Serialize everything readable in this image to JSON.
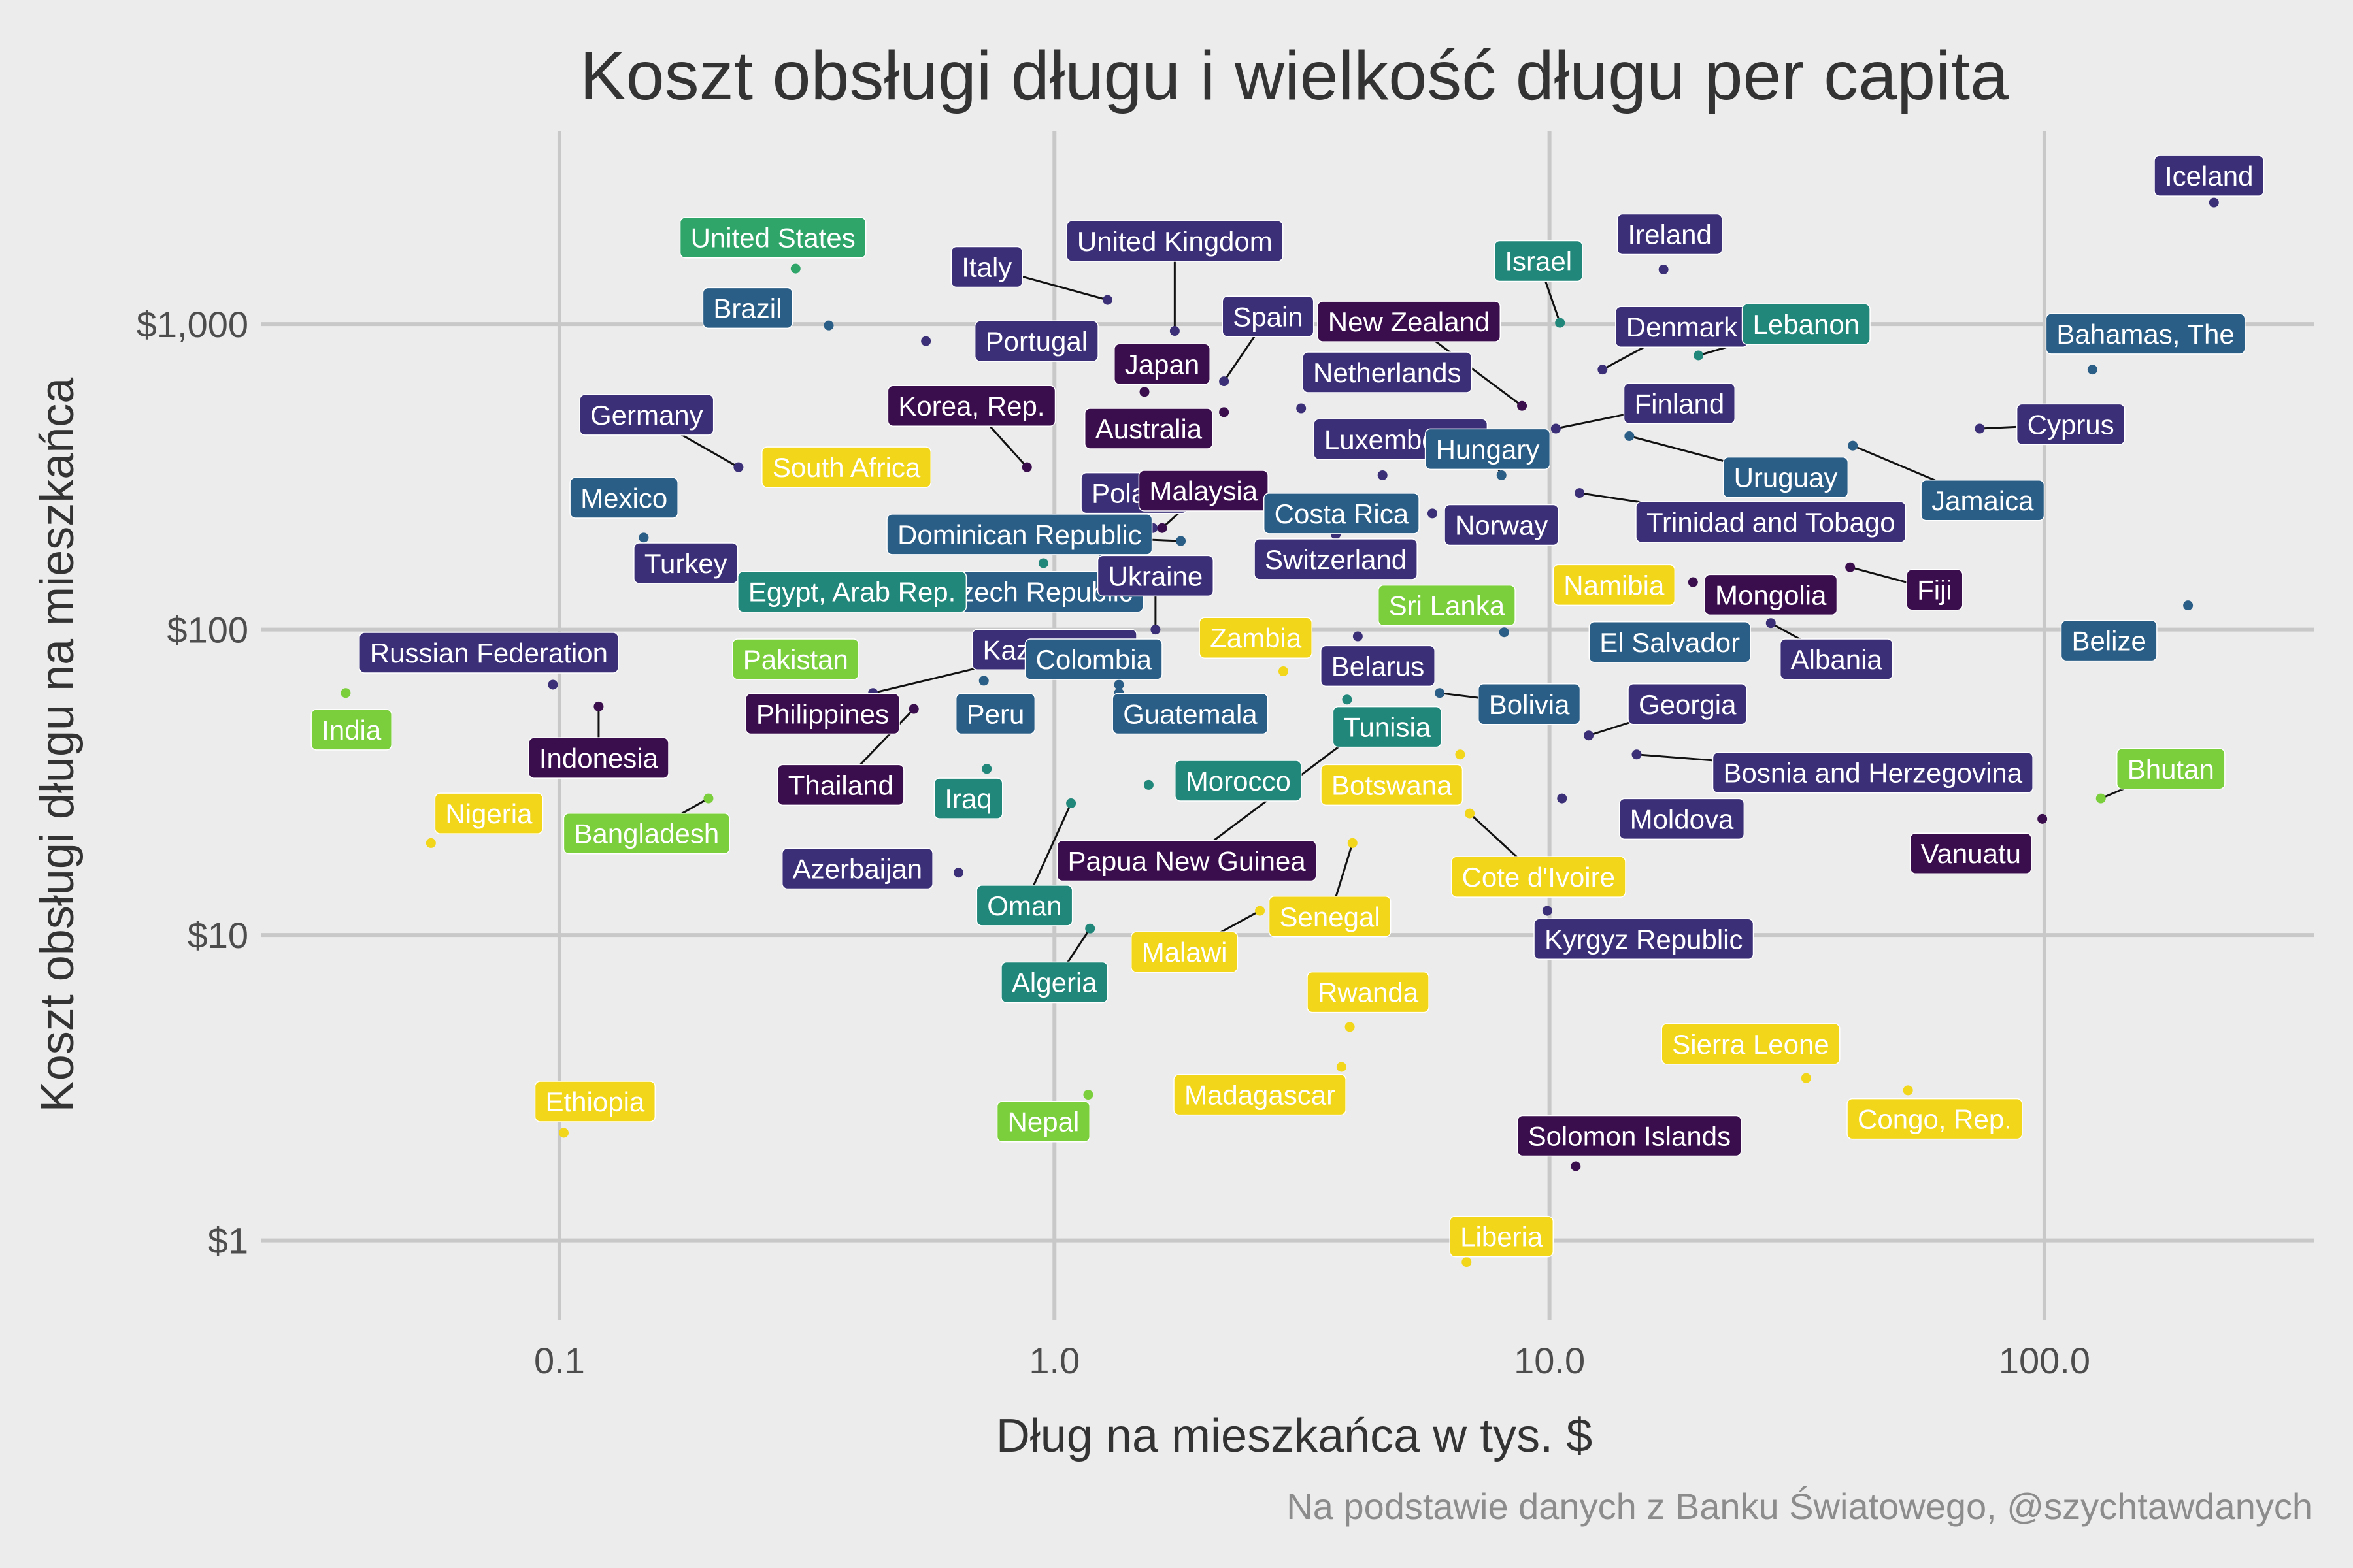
{
  "chart_data": {
    "type": "scatter",
    "title": "Koszt obsługi długu i wielkość długu per capita",
    "xlabel": "Dług na mieszkańca w tys. $",
    "ylabel": "Koszt obsługi długu na mieszkańca",
    "caption": "Na podstawie danych z Banku Światowego, @szychtawdanych",
    "x_scale": "log",
    "y_scale": "log",
    "xlim": [
      0.025,
      350
    ],
    "ylim": [
      0.55,
      4300
    ],
    "x_ticks": [
      0.1,
      1.0,
      10.0,
      100.0
    ],
    "x_tick_labels": [
      "0.1",
      "1.0",
      "10.0",
      "100.0"
    ],
    "y_ticks": [
      1,
      10,
      100,
      1000
    ],
    "y_tick_labels": [
      "$1",
      "$10",
      "$100",
      "$1,000"
    ],
    "grid": true,
    "legend": "none",
    "palette": "viridis",
    "points": [
      {
        "name": "Iceland",
        "x": 220,
        "y": 2500,
        "color": "#3b2f78",
        "lx": 215,
        "ly": 3060,
        "leader": false
      },
      {
        "name": "United States",
        "x": 0.3,
        "y": 1520,
        "color": "#2fa569",
        "lx": 0.27,
        "ly": 1920,
        "leader": false
      },
      {
        "name": "United Kingdom",
        "x": 1.75,
        "y": 950,
        "color": "#3b2f78",
        "lx": 1.75,
        "ly": 1870,
        "leader": true
      },
      {
        "name": "Ireland",
        "x": 17.0,
        "y": 1510,
        "color": "#3b2f78",
        "lx": 17.5,
        "ly": 1970,
        "leader": false
      },
      {
        "name": "Israel",
        "x": 10.5,
        "y": 1010,
        "color": "#21877a",
        "lx": 9.5,
        "ly": 1610,
        "leader": true
      },
      {
        "name": "Italy",
        "x": 1.28,
        "y": 1200,
        "color": "#3b2f78",
        "lx": 0.73,
        "ly": 1540,
        "leader": true
      },
      {
        "name": "Brazil",
        "x": 0.35,
        "y": 990,
        "color": "#2b5e86",
        "lx": 0.24,
        "ly": 1130,
        "leader": false
      },
      {
        "name": "Spain",
        "x": 2.2,
        "y": 650,
        "color": "#3b2f78",
        "lx": 2.7,
        "ly": 1060,
        "leader": true
      },
      {
        "name": "New Zealand",
        "x": 8.8,
        "y": 540,
        "color": "#3a0d4c",
        "lx": 5.2,
        "ly": 1020,
        "leader": true
      },
      {
        "name": "Denmark",
        "x": 12.8,
        "y": 710,
        "color": "#3b2f78",
        "lx": 18.5,
        "ly": 980,
        "leader": true
      },
      {
        "name": "Lebanon",
        "x": 20.0,
        "y": 790,
        "color": "#21877a",
        "lx": 33.0,
        "ly": 1000,
        "leader": true
      },
      {
        "name": "Bahamas, The",
        "x": 125,
        "y": 710,
        "color": "#2b5e86",
        "lx": 160,
        "ly": 930,
        "leader": false
      },
      {
        "name": "Portugal",
        "x": 0.55,
        "y": 880,
        "color": "#3b2f78",
        "lx": 0.92,
        "ly": 880,
        "leader": false
      },
      {
        "name": "Japan",
        "x": 1.52,
        "y": 600,
        "color": "#3a0d4c",
        "lx": 1.65,
        "ly": 740,
        "leader": false
      },
      {
        "name": "Netherlands",
        "x": 3.15,
        "y": 530,
        "color": "#3b2f78",
        "lx": 4.7,
        "ly": 695,
        "leader": false
      },
      {
        "name": "Germany",
        "x": 0.23,
        "y": 340,
        "color": "#3b2f78",
        "lx": 0.15,
        "ly": 505,
        "leader": true
      },
      {
        "name": "Korea, Rep.",
        "x": 0.88,
        "y": 340,
        "color": "#3a0d4c",
        "lx": 0.68,
        "ly": 540,
        "leader": true
      },
      {
        "name": "Australia",
        "x": 2.2,
        "y": 515,
        "color": "#3a0d4c",
        "lx": 1.55,
        "ly": 455,
        "leader": false
      },
      {
        "name": "Finland",
        "x": 10.3,
        "y": 455,
        "color": "#3b2f78",
        "lx": 18.3,
        "ly": 550,
        "leader": true
      },
      {
        "name": "Cyprus",
        "x": 74,
        "y": 455,
        "color": "#3b2f78",
        "lx": 113,
        "ly": 470,
        "leader": true
      },
      {
        "name": "South Africa",
        "x": 0.5,
        "y": 315,
        "color": "#f2d619",
        "lx": 0.38,
        "ly": 340,
        "leader": false
      },
      {
        "name": "Luxembourg",
        "x": 4.6,
        "y": 320,
        "color": "#3b2f78",
        "lx": 5.0,
        "ly": 420,
        "leader": false
      },
      {
        "name": "Hungary",
        "x": 8.0,
        "y": 320,
        "color": "#2b5e86",
        "lx": 7.5,
        "ly": 390,
        "leader": true
      },
      {
        "name": "Uruguay",
        "x": 14.5,
        "y": 430,
        "color": "#2b5e86",
        "lx": 30.0,
        "ly": 315,
        "leader": true
      },
      {
        "name": "Jamaica",
        "x": 41,
        "y": 400,
        "color": "#2b5e86",
        "lx": 75,
        "ly": 265,
        "leader": true
      },
      {
        "name": "Mexico",
        "x": 0.148,
        "y": 200,
        "color": "#2b5e86",
        "lx": 0.135,
        "ly": 270,
        "leader": false
      },
      {
        "name": "Poland",
        "x": 1.58,
        "y": 215,
        "color": "#3b2f78",
        "lx": 1.45,
        "ly": 280,
        "leader": true
      },
      {
        "name": "Malaysia",
        "x": 1.65,
        "y": 215,
        "color": "#3a0d4c",
        "lx": 2.0,
        "ly": 285,
        "leader": true
      },
      {
        "name": "Costa Rica",
        "x": 4.5,
        "y": 255,
        "color": "#2b5e86",
        "lx": 3.8,
        "ly": 240,
        "leader": false
      },
      {
        "name": "Norway",
        "x": 5.8,
        "y": 240,
        "color": "#3b2f78",
        "lx": 8.0,
        "ly": 220,
        "leader": false
      },
      {
        "name": "Trinidad and Tobago",
        "x": 11.5,
        "y": 280,
        "color": "#3b2f78",
        "lx": 28.0,
        "ly": 225,
        "leader": true
      },
      {
        "name": "Dominican Republic",
        "x": 1.8,
        "y": 195,
        "color": "#2b5e86",
        "lx": 0.85,
        "ly": 205,
        "leader": true
      },
      {
        "name": "Turkey",
        "x": 0.21,
        "y": 175,
        "color": "#3b2f78",
        "lx": 0.18,
        "ly": 165,
        "leader": false
      },
      {
        "name": "Czech Republic",
        "x": 1.25,
        "y": 180,
        "color": "#2b5e86",
        "lx": 0.92,
        "ly": 133,
        "leader": false
      },
      {
        "name": "Egypt, Arab Rep.",
        "x": 0.95,
        "y": 165,
        "color": "#21877a",
        "lx": 0.39,
        "ly": 133,
        "leader": false
      },
      {
        "name": "Switzerland",
        "x": 3.7,
        "y": 205,
        "color": "#3b2f78",
        "lx": 3.7,
        "ly": 170,
        "leader": false
      },
      {
        "name": "Namibia",
        "x": 7.0,
        "y": 130,
        "color": "#f2d619",
        "lx": 13.5,
        "ly": 140,
        "leader": false
      },
      {
        "name": "Mongolia",
        "x": 19.5,
        "y": 143,
        "color": "#3a0d4c",
        "lx": 28.0,
        "ly": 130,
        "leader": false
      },
      {
        "name": "Fiji",
        "x": 40.5,
        "y": 160,
        "color": "#3a0d4c",
        "lx": 60,
        "ly": 135,
        "leader": true
      },
      {
        "name": "Ukraine",
        "x": 1.6,
        "y": 100,
        "color": "#3b2f78",
        "lx": 1.6,
        "ly": 150,
        "leader": true
      },
      {
        "name": "Sri Lanka",
        "x": 4.8,
        "y": 120,
        "color": "#7ccf3c",
        "lx": 6.2,
        "ly": 120,
        "leader": false
      },
      {
        "name": "Belize",
        "x": 195,
        "y": 120,
        "color": "#2b5e86",
        "lx": 135,
        "ly": 92,
        "leader": false
      },
      {
        "name": "Russian Federation",
        "x": 0.097,
        "y": 66,
        "color": "#3b2f78",
        "lx": 0.072,
        "ly": 84,
        "leader": false
      },
      {
        "name": "Pakistan",
        "x": 0.37,
        "y": 72,
        "color": "#7ccf3c",
        "lx": 0.3,
        "ly": 80,
        "leader": true
      },
      {
        "name": "Kazakhstan",
        "x": 0.43,
        "y": 62,
        "color": "#3b2f78",
        "lx": 1.0,
        "ly": 86,
        "leader": true
      },
      {
        "name": "Colombia",
        "x": 1.35,
        "y": 66,
        "color": "#2b5e86",
        "lx": 1.2,
        "ly": 80,
        "leader": false
      },
      {
        "name": "Zambia",
        "x": 2.9,
        "y": 73,
        "color": "#f2d619",
        "lx": 2.55,
        "ly": 94,
        "leader": false
      },
      {
        "name": "Belarus",
        "x": 4.1,
        "y": 95,
        "color": "#3b2f78",
        "lx": 4.5,
        "ly": 76,
        "leader": false
      },
      {
        "name": "El Salvador",
        "x": 8.1,
        "y": 98,
        "color": "#2b5e86",
        "lx": 17.5,
        "ly": 91,
        "leader": false
      },
      {
        "name": "Albania",
        "x": 28.0,
        "y": 105,
        "color": "#3b2f78",
        "lx": 38.0,
        "ly": 80,
        "leader": true
      },
      {
        "name": "India",
        "x": 0.037,
        "y": 62,
        "color": "#7ccf3c",
        "lx": 0.038,
        "ly": 47,
        "leader": false
      },
      {
        "name": "Indonesia",
        "x": 0.12,
        "y": 56,
        "color": "#3a0d4c",
        "lx": 0.12,
        "ly": 38,
        "leader": true
      },
      {
        "name": "Philippines",
        "x": 0.43,
        "y": 60,
        "color": "#3a0d4c",
        "lx": 0.34,
        "ly": 53,
        "leader": false
      },
      {
        "name": "Peru",
        "x": 0.72,
        "y": 68,
        "color": "#2b5e86",
        "lx": 0.76,
        "ly": 53,
        "leader": false
      },
      {
        "name": "Guatemala",
        "x": 1.35,
        "y": 62,
        "color": "#2b5e86",
        "lx": 1.88,
        "ly": 53,
        "leader": false
      },
      {
        "name": "Bolivia",
        "x": 6.0,
        "y": 62,
        "color": "#2b5e86",
        "lx": 9.1,
        "ly": 57,
        "leader": true
      },
      {
        "name": "Georgia",
        "x": 12.0,
        "y": 45,
        "color": "#3b2f78",
        "lx": 19.0,
        "ly": 57,
        "leader": true
      },
      {
        "name": "Tunisia",
        "x": 3.9,
        "y": 59,
        "color": "#21877a",
        "lx": 4.7,
        "ly": 48,
        "leader": false
      },
      {
        "name": "Bosnia and Herzegovina",
        "x": 15.0,
        "y": 39,
        "color": "#3b2f78",
        "lx": 45.0,
        "ly": 34,
        "leader": true
      },
      {
        "name": "Bhutan",
        "x": 130,
        "y": 28,
        "color": "#7ccf3c",
        "lx": 180,
        "ly": 35,
        "leader": true
      },
      {
        "name": "Thailand",
        "x": 0.52,
        "y": 55,
        "color": "#3a0d4c",
        "lx": 0.37,
        "ly": 31,
        "leader": true
      },
      {
        "name": "Iraq",
        "x": 0.73,
        "y": 35,
        "color": "#21877a",
        "lx": 0.67,
        "ly": 28,
        "leader": false
      },
      {
        "name": "Morocco",
        "x": 1.55,
        "y": 31,
        "color": "#21877a",
        "lx": 2.35,
        "ly": 32,
        "leader": false
      },
      {
        "name": "Botswana",
        "x": 6.6,
        "y": 39,
        "color": "#f2d619",
        "lx": 4.8,
        "ly": 31,
        "leader": false
      },
      {
        "name": "Papua New Guinea",
        "x": 3.95,
        "y": 44,
        "color": "#3a0d4c",
        "lx": 1.85,
        "ly": 17.5,
        "leader": true
      },
      {
        "name": "Moldova",
        "x": 10.6,
        "y": 28,
        "color": "#3b2f78",
        "lx": 18.5,
        "ly": 24,
        "leader": false
      },
      {
        "name": "Vanuatu",
        "x": 99,
        "y": 24,
        "color": "#3a0d4c",
        "lx": 71,
        "ly": 18.5,
        "leader": false
      },
      {
        "name": "Nigeria",
        "x": 0.055,
        "y": 20,
        "color": "#f2d619",
        "lx": 0.072,
        "ly": 25,
        "leader": false
      },
      {
        "name": "Bangladesh",
        "x": 0.2,
        "y": 28,
        "color": "#7ccf3c",
        "lx": 0.15,
        "ly": 21.5,
        "leader": true
      },
      {
        "name": "Azerbaijan",
        "x": 0.64,
        "y": 16,
        "color": "#3b2f78",
        "lx": 0.4,
        "ly": 16.5,
        "leader": false
      },
      {
        "name": "Oman",
        "x": 1.08,
        "y": 27,
        "color": "#21877a",
        "lx": 0.87,
        "ly": 12.5,
        "leader": true
      },
      {
        "name": "Cote d'Ivoire",
        "x": 6.9,
        "y": 25,
        "color": "#f2d619",
        "lx": 9.5,
        "ly": 15.5,
        "leader": true
      },
      {
        "name": "Kyrgyz Republic",
        "x": 9.9,
        "y": 12,
        "color": "#3b2f78",
        "lx": 15.5,
        "ly": 9.7,
        "leader": false
      },
      {
        "name": "Senegal",
        "x": 4.0,
        "y": 20,
        "color": "#f2d619",
        "lx": 3.6,
        "ly": 11.5,
        "leader": true
      },
      {
        "name": "Malawi",
        "x": 2.6,
        "y": 12,
        "color": "#f2d619",
        "lx": 1.83,
        "ly": 8.8,
        "leader": true
      },
      {
        "name": "Algeria",
        "x": 1.18,
        "y": 10.5,
        "color": "#21877a",
        "lx": 1.0,
        "ly": 7.0,
        "leader": true
      },
      {
        "name": "Rwanda",
        "x": 3.95,
        "y": 5.0,
        "color": "#f2d619",
        "lx": 4.3,
        "ly": 6.5,
        "leader": false
      },
      {
        "name": "Sierra Leone",
        "x": 33.0,
        "y": 3.4,
        "color": "#f2d619",
        "lx": 25.5,
        "ly": 4.4,
        "leader": false
      },
      {
        "name": "Madagascar",
        "x": 3.8,
        "y": 3.7,
        "color": "#f2d619",
        "lx": 2.6,
        "ly": 3.0,
        "leader": false
      },
      {
        "name": "Congo, Rep.",
        "x": 53,
        "y": 3.1,
        "color": "#f2d619",
        "lx": 60,
        "ly": 2.5,
        "leader": false
      },
      {
        "name": "Ethiopia",
        "x": 0.102,
        "y": 2.25,
        "color": "#f2d619",
        "lx": 0.118,
        "ly": 2.85,
        "leader": false
      },
      {
        "name": "Nepal",
        "x": 1.17,
        "y": 3.0,
        "color": "#7ccf3c",
        "lx": 0.95,
        "ly": 2.45,
        "leader": false
      },
      {
        "name": "Solomon Islands",
        "x": 11.3,
        "y": 1.75,
        "color": "#3a0d4c",
        "lx": 14.5,
        "ly": 2.2,
        "leader": false
      },
      {
        "name": "Liberia",
        "x": 6.8,
        "y": 0.85,
        "color": "#f2d619",
        "lx": 8.0,
        "ly": 1.03,
        "leader": false
      }
    ]
  }
}
